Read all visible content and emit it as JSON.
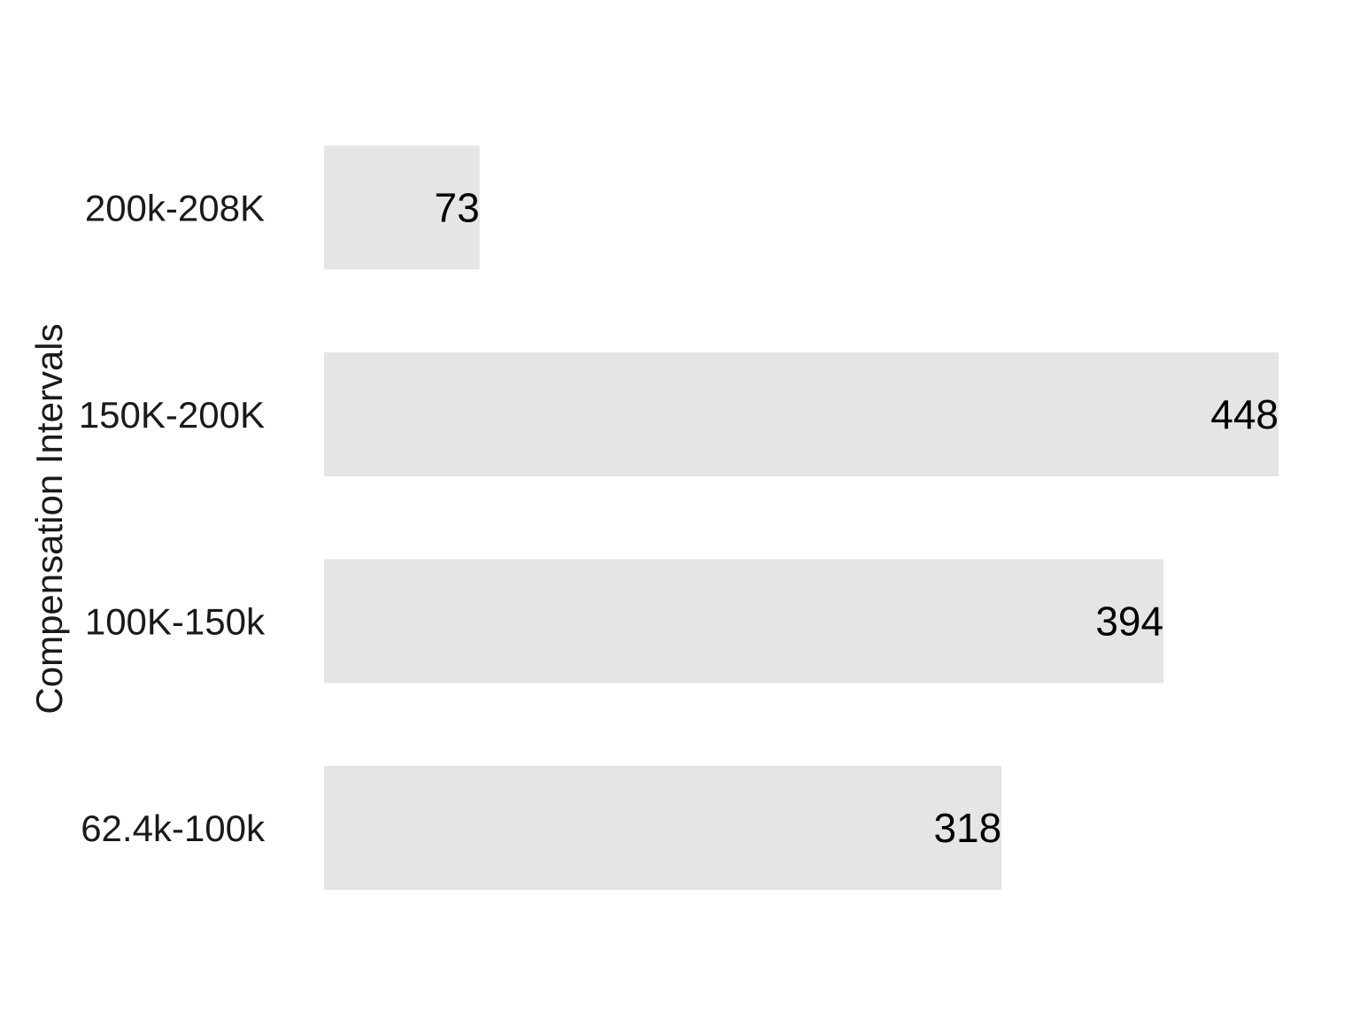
{
  "chart_data": {
    "type": "bar",
    "orientation": "horizontal",
    "title": "",
    "xlabel": "",
    "ylabel": "Compensation Intervals",
    "categories": [
      "62.4k-100k",
      "100K-150k",
      "150K-200K",
      "200k-208K"
    ],
    "values": [
      318,
      394,
      448,
      73
    ],
    "xlim": [
      0,
      448
    ],
    "grid": false,
    "legend": "none",
    "data_labels": true,
    "bar_color": "#e5e5e5",
    "label_color": "#000000",
    "text_color": "#1a1a1a",
    "background": "#ffffff"
  }
}
